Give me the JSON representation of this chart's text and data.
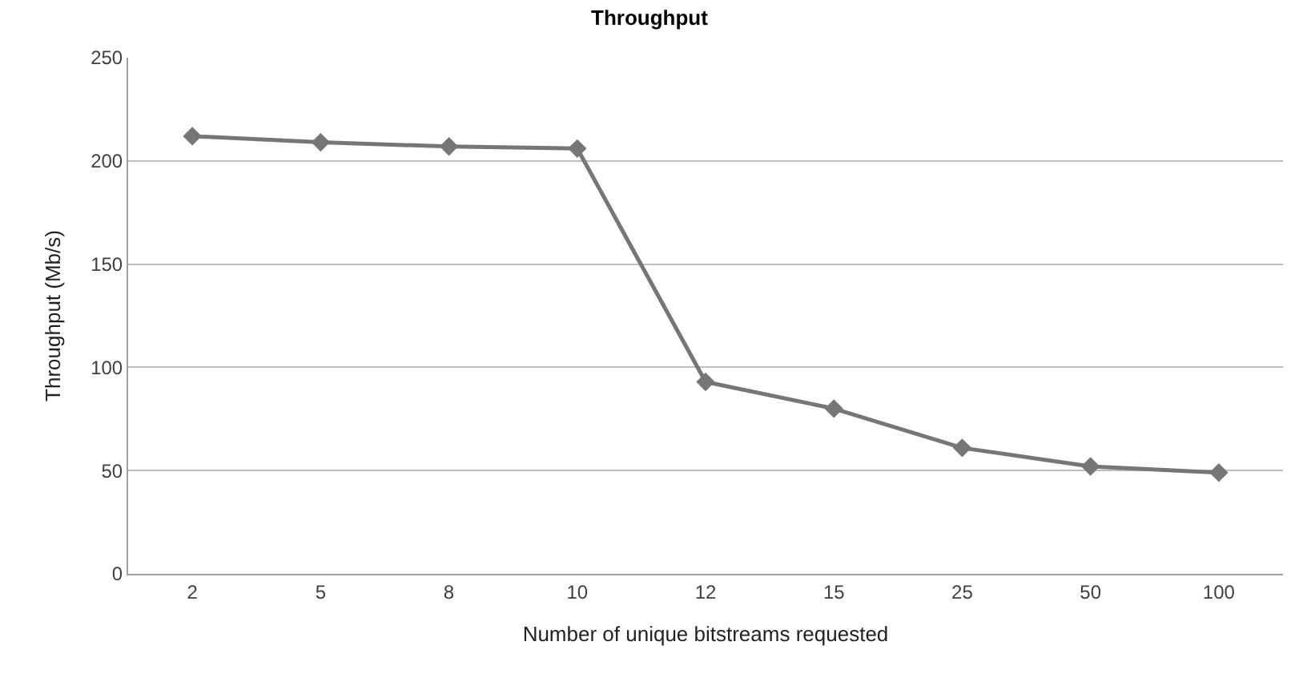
{
  "chart_data": {
    "type": "line",
    "title": "Throughput",
    "xlabel": "Number of unique bitstreams requested",
    "ylabel": "Throughput (Mb/s)",
    "categories": [
      "2",
      "5",
      "8",
      "10",
      "12",
      "15",
      "25",
      "50",
      "100"
    ],
    "series": [
      {
        "color": "#767676",
        "values": [
          212,
          209,
          207,
          206,
          93,
          80,
          61,
          52,
          49
        ]
      }
    ],
    "ylim": [
      0,
      250
    ],
    "yticks": [
      0,
      50,
      100,
      150,
      200,
      250
    ],
    "grid": "y",
    "legend": false,
    "marker": "diamond",
    "line_style": "solid"
  }
}
